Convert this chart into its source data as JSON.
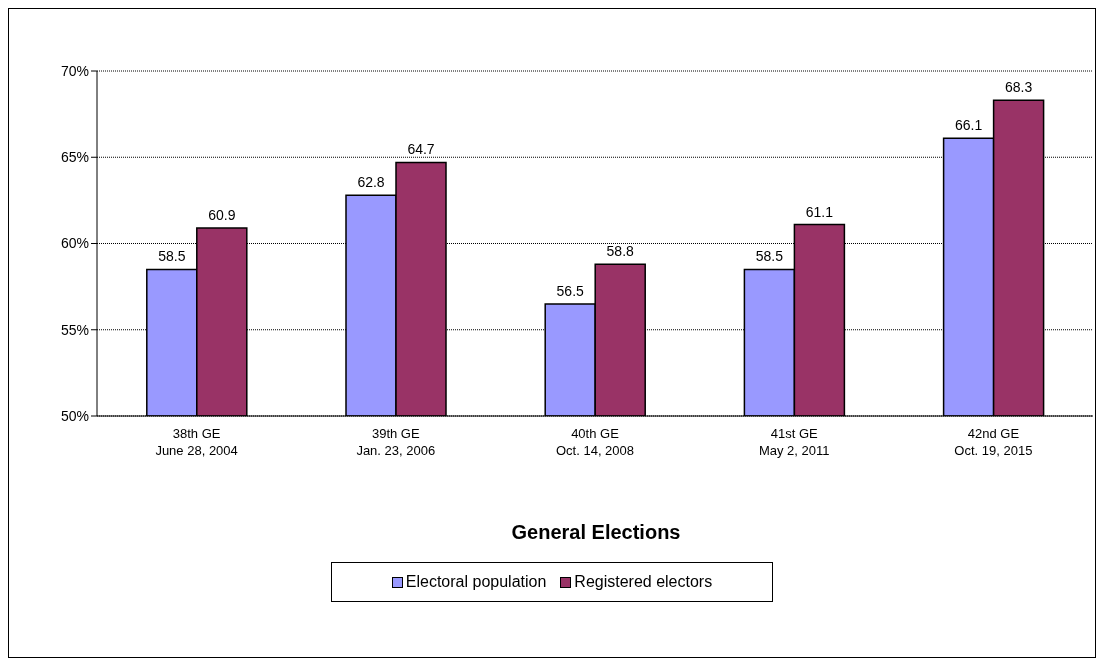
{
  "chart_data": {
    "type": "bar",
    "xlabel": "General Elections",
    "categories": [
      "38th GE\nJune 28, 2004",
      "39th GE\nJan. 23, 2006",
      "40th GE\nOct. 14, 2008",
      "41st GE\nMay 2, 2011",
      "42nd GE\nOct. 19, 2015"
    ],
    "series": [
      {
        "name": "Electoral population",
        "color": "#9999ff",
        "values": [
          58.5,
          62.8,
          56.5,
          58.5,
          66.1
        ]
      },
      {
        "name": "Registered electors",
        "color": "#993366",
        "values": [
          60.9,
          64.7,
          58.8,
          61.1,
          68.3
        ]
      }
    ],
    "ylim": [
      50,
      70
    ],
    "yticks": [
      {
        "value": 50,
        "label": "50%"
      },
      {
        "value": 55,
        "label": "55%"
      },
      {
        "value": 60,
        "label": "60%"
      },
      {
        "value": 65,
        "label": "65%"
      },
      {
        "value": 70,
        "label": "70%"
      }
    ],
    "grid": "y",
    "legend": "bottom",
    "data_labels": true
  }
}
